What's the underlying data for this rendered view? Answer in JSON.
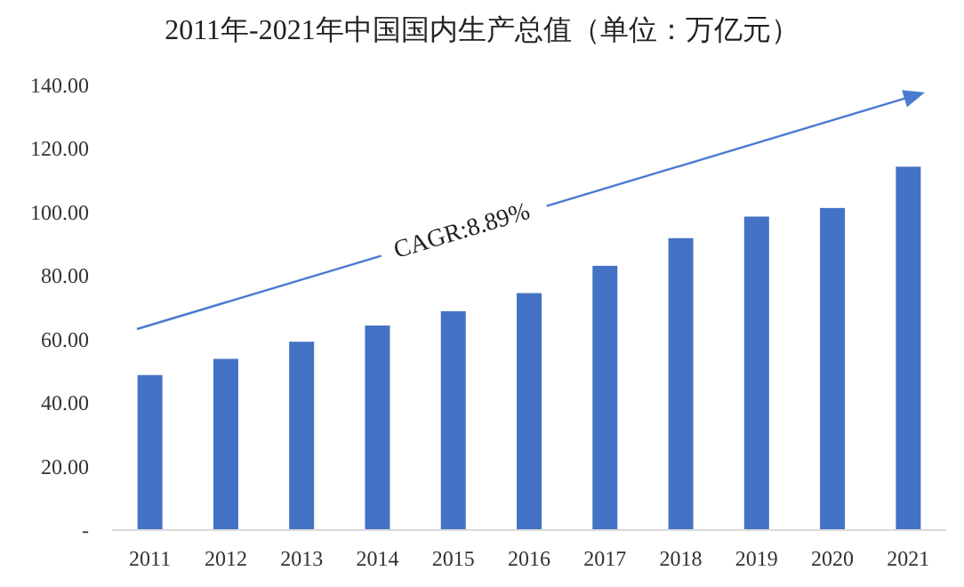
{
  "chart_data": {
    "type": "bar",
    "title": "2011年-2021年中国国内生产总值（单位：万亿元）",
    "categories": [
      "2011",
      "2012",
      "2013",
      "2014",
      "2015",
      "2016",
      "2017",
      "2018",
      "2019",
      "2020",
      "2021"
    ],
    "values": [
      48.8,
      53.9,
      59.3,
      64.4,
      68.9,
      74.6,
      83.2,
      91.9,
      98.7,
      101.4,
      114.4
    ],
    "color": "#4472c4",
    "ylim": [
      0,
      140
    ],
    "yticks": [
      {
        "value": 0,
        "label": "-"
      },
      {
        "value": 20,
        "label": "20.00"
      },
      {
        "value": 40,
        "label": "40.00"
      },
      {
        "value": 60,
        "label": "60.00"
      },
      {
        "value": 80,
        "label": "80.00"
      },
      {
        "value": 100,
        "label": "100.00"
      },
      {
        "value": 120,
        "label": "120.00"
      },
      {
        "value": 140,
        "label": "140.00"
      }
    ],
    "annotations": [
      "CAGR:8.89%"
    ],
    "grid": false
  }
}
